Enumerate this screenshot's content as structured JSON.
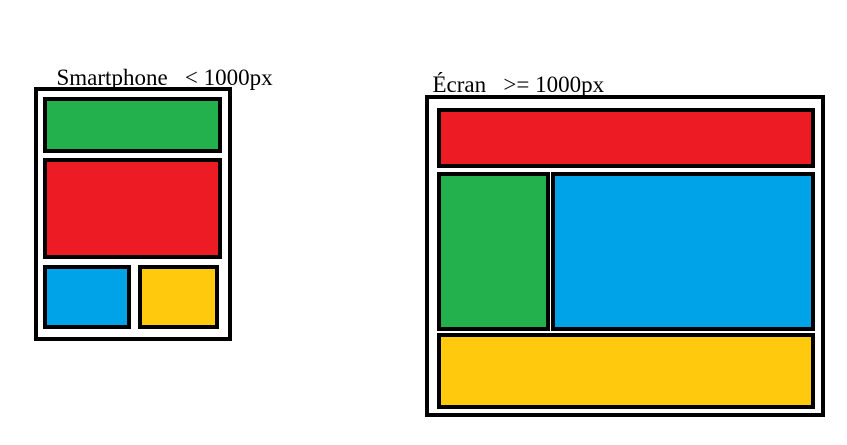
{
  "smartphone": {
    "title": "Smartphone",
    "condition": "< 1000px",
    "blocks": [
      {
        "name": "block-green",
        "color": "#22b14c"
      },
      {
        "name": "block-red",
        "color": "#ed1c24"
      },
      {
        "name": "block-blue",
        "color": "#00a2e8"
      },
      {
        "name": "block-yellow",
        "color": "#ffc90e"
      }
    ]
  },
  "screen": {
    "title": "Écran",
    "condition": ">= 1000px",
    "blocks": [
      {
        "name": "block-red",
        "color": "#ed1c24"
      },
      {
        "name": "block-green",
        "color": "#22b14c"
      },
      {
        "name": "block-blue",
        "color": "#00a2e8"
      },
      {
        "name": "block-yellow",
        "color": "#ffc90e"
      }
    ]
  }
}
